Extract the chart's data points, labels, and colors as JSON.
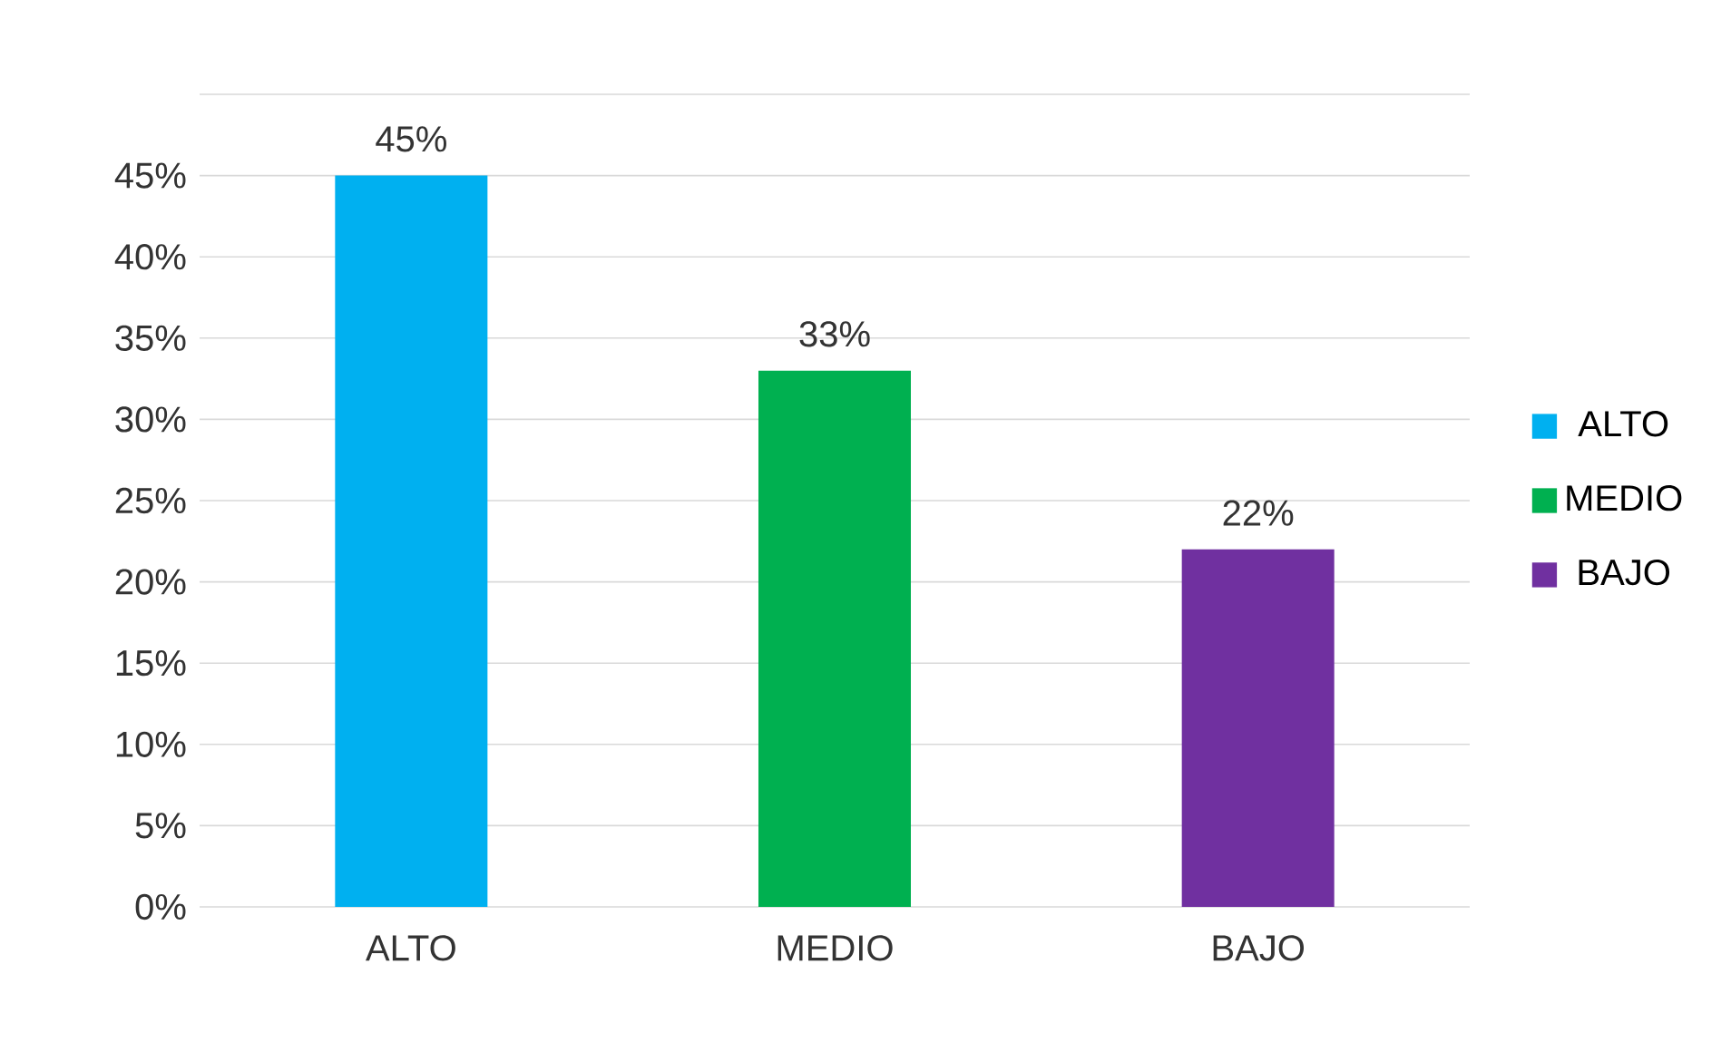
{
  "chart_data": {
    "type": "bar",
    "categories": [
      "ALTO",
      "MEDIO",
      "BAJO"
    ],
    "series": [
      {
        "name": "ALTO",
        "color": "#00b0f0",
        "values": [
          45,
          null,
          null
        ],
        "value_labels": [
          "45%",
          null,
          null
        ]
      },
      {
        "name": "MEDIO",
        "color": "#00b050",
        "values": [
          null,
          33,
          null
        ],
        "value_labels": [
          null,
          "33%",
          null
        ]
      },
      {
        "name": "BAJO",
        "color": "#7030a0",
        "values": [
          null,
          null,
          22
        ],
        "value_labels": [
          null,
          null,
          "22%"
        ]
      }
    ],
    "ylim": [
      0,
      50
    ],
    "yticks": [
      {
        "value": 0,
        "label": "0%"
      },
      {
        "value": 5,
        "label": "5%"
      },
      {
        "value": 10,
        "label": "10%"
      },
      {
        "value": 15,
        "label": "15%"
      },
      {
        "value": 20,
        "label": "20%"
      },
      {
        "value": 25,
        "label": "25%"
      },
      {
        "value": 30,
        "label": "30%"
      },
      {
        "value": 35,
        "label": "35%"
      },
      {
        "value": 40,
        "label": "40%"
      },
      {
        "value": 45,
        "label": "45%"
      },
      {
        "value": 50,
        "label": null
      }
    ],
    "grid": "y",
    "legend": "right"
  }
}
